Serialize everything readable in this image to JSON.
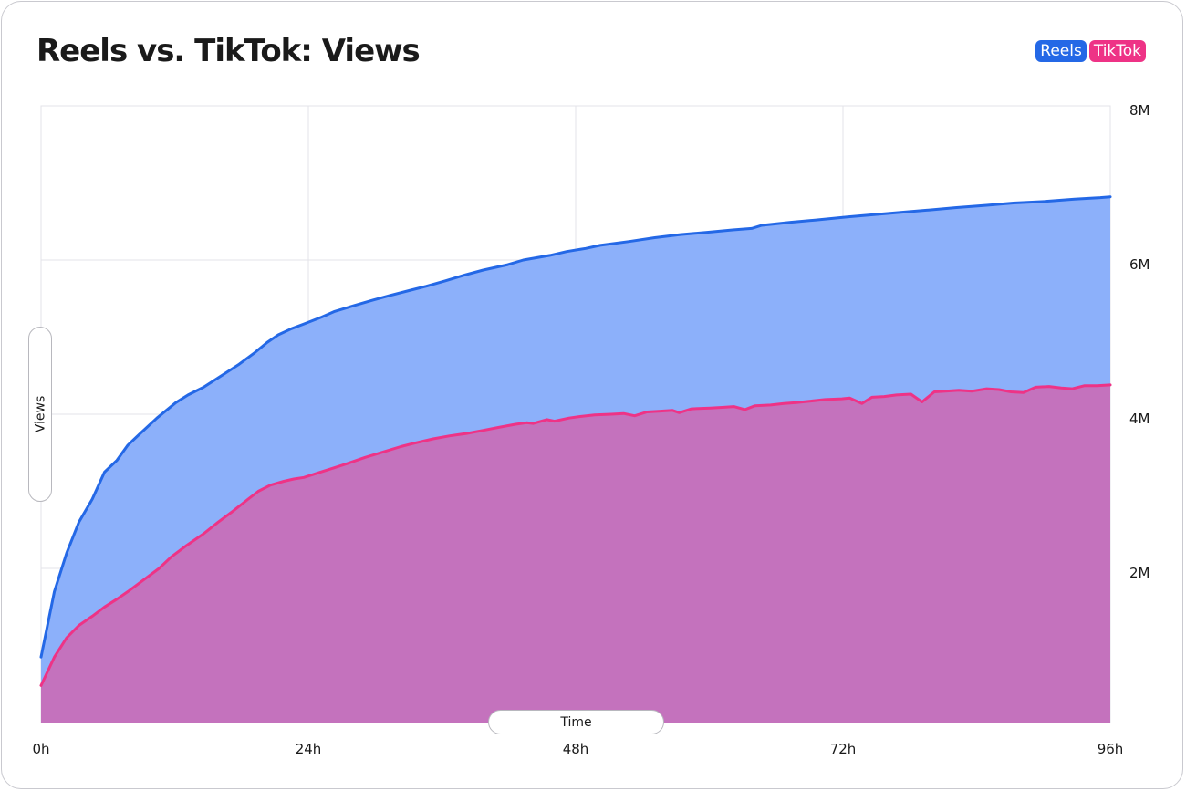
{
  "chart_data": {
    "type": "area",
    "title": "Reels vs. TikTok: Views",
    "xlabel": "Time",
    "ylabel": "Views",
    "x_unit": "hours",
    "xlim": [
      0,
      96
    ],
    "ylim": [
      0,
      8000000
    ],
    "x_ticks": [
      {
        "value": 0,
        "label": "0h"
      },
      {
        "value": 24,
        "label": "24h"
      },
      {
        "value": 48,
        "label": "48h"
      },
      {
        "value": 72,
        "label": "72h"
      },
      {
        "value": 96,
        "label": "96h"
      }
    ],
    "y_ticks": [
      {
        "value": 2000000,
        "label": "2M"
      },
      {
        "value": 4000000,
        "label": "4M"
      },
      {
        "value": 6000000,
        "label": "6M"
      },
      {
        "value": 8000000,
        "label": "8M"
      }
    ],
    "y_axis_side": "right",
    "grid": true,
    "legend_position": "top-right",
    "series": [
      {
        "name": "Reels",
        "color": "#2468e6",
        "fill": "#8cb0fa",
        "points": [
          [
            0,
            850000
          ],
          [
            1.2,
            1700000
          ],
          [
            2.3,
            2200000
          ],
          [
            3.4,
            2600000
          ],
          [
            4.6,
            2900000
          ],
          [
            5.7,
            3250000
          ],
          [
            6.8,
            3400000
          ],
          [
            7.8,
            3600000
          ],
          [
            8.9,
            3750000
          ],
          [
            10.4,
            3950000
          ],
          [
            12.1,
            4150000
          ],
          [
            13.2,
            4250000
          ],
          [
            14.6,
            4350000
          ],
          [
            16.2,
            4500000
          ],
          [
            17.8,
            4650000
          ],
          [
            19.2,
            4800000
          ],
          [
            20.3,
            4930000
          ],
          [
            21.3,
            5030000
          ],
          [
            22.5,
            5110000
          ],
          [
            23.6,
            5170000
          ],
          [
            25.2,
            5260000
          ],
          [
            26.3,
            5330000
          ],
          [
            28.1,
            5410000
          ],
          [
            29.8,
            5480000
          ],
          [
            31.3,
            5540000
          ],
          [
            33.2,
            5610000
          ],
          [
            34.6,
            5660000
          ],
          [
            36.3,
            5730000
          ],
          [
            37.9,
            5800000
          ],
          [
            39.7,
            5870000
          ],
          [
            41.9,
            5940000
          ],
          [
            43.3,
            6000000
          ],
          [
            45.7,
            6060000
          ],
          [
            47.2,
            6110000
          ],
          [
            48.9,
            6150000
          ],
          [
            50.2,
            6190000
          ],
          [
            52.8,
            6240000
          ],
          [
            55.1,
            6290000
          ],
          [
            57.4,
            6330000
          ],
          [
            59.8,
            6360000
          ],
          [
            62.1,
            6390000
          ],
          [
            63.8,
            6410000
          ],
          [
            64.7,
            6450000
          ],
          [
            67.3,
            6490000
          ],
          [
            69.6,
            6520000
          ],
          [
            72.4,
            6560000
          ],
          [
            74.9,
            6590000
          ],
          [
            77.3,
            6620000
          ],
          [
            79.8,
            6650000
          ],
          [
            82.2,
            6680000
          ],
          [
            84.9,
            6710000
          ],
          [
            87.3,
            6740000
          ],
          [
            90.1,
            6760000
          ],
          [
            92.8,
            6790000
          ],
          [
            95.1,
            6810000
          ],
          [
            96,
            6820000
          ]
        ]
      },
      {
        "name": "TikTok",
        "color": "#ee3386",
        "fill": "#c472bd",
        "points": [
          [
            0,
            480000
          ],
          [
            1.2,
            850000
          ],
          [
            2.3,
            1100000
          ],
          [
            3.4,
            1260000
          ],
          [
            4.6,
            1380000
          ],
          [
            5.7,
            1500000
          ],
          [
            6.8,
            1600000
          ],
          [
            7.8,
            1700000
          ],
          [
            9.2,
            1850000
          ],
          [
            10.6,
            2000000
          ],
          [
            11.7,
            2150000
          ],
          [
            13.1,
            2300000
          ],
          [
            14.6,
            2450000
          ],
          [
            15.9,
            2600000
          ],
          [
            17.3,
            2750000
          ],
          [
            18.6,
            2900000
          ],
          [
            19.5,
            3000000
          ],
          [
            20.6,
            3080000
          ],
          [
            21.8,
            3130000
          ],
          [
            22.7,
            3160000
          ],
          [
            23.6,
            3180000
          ],
          [
            24.9,
            3240000
          ],
          [
            26.2,
            3300000
          ],
          [
            27.5,
            3360000
          ],
          [
            29.1,
            3440000
          ],
          [
            30.7,
            3510000
          ],
          [
            32.3,
            3580000
          ],
          [
            33.4,
            3620000
          ],
          [
            35.2,
            3680000
          ],
          [
            36.7,
            3720000
          ],
          [
            38.2,
            3750000
          ],
          [
            39.7,
            3790000
          ],
          [
            41.1,
            3830000
          ],
          [
            42.6,
            3870000
          ],
          [
            43.6,
            3890000
          ],
          [
            44.2,
            3880000
          ],
          [
            45.4,
            3930000
          ],
          [
            46.1,
            3910000
          ],
          [
            47.4,
            3950000
          ],
          [
            48.4,
            3970000
          ],
          [
            49.7,
            3990000
          ],
          [
            51.2,
            4000000
          ],
          [
            52.3,
            4010000
          ],
          [
            53.3,
            3980000
          ],
          [
            54.4,
            4030000
          ],
          [
            55.6,
            4040000
          ],
          [
            56.7,
            4050000
          ],
          [
            57.3,
            4020000
          ],
          [
            58.4,
            4070000
          ],
          [
            60.1,
            4080000
          ],
          [
            61.3,
            4090000
          ],
          [
            62.2,
            4100000
          ],
          [
            63.2,
            4060000
          ],
          [
            64.1,
            4110000
          ],
          [
            65.5,
            4120000
          ],
          [
            66.7,
            4140000
          ],
          [
            67.8,
            4150000
          ],
          [
            69.1,
            4170000
          ],
          [
            70.4,
            4190000
          ],
          [
            71.9,
            4200000
          ],
          [
            72.6,
            4210000
          ],
          [
            73.7,
            4140000
          ],
          [
            74.6,
            4220000
          ],
          [
            75.7,
            4230000
          ],
          [
            76.8,
            4250000
          ],
          [
            78.1,
            4260000
          ],
          [
            79.1,
            4160000
          ],
          [
            80.2,
            4290000
          ],
          [
            81.2,
            4300000
          ],
          [
            82.4,
            4310000
          ],
          [
            83.6,
            4300000
          ],
          [
            84.9,
            4330000
          ],
          [
            86.0,
            4320000
          ],
          [
            87.1,
            4290000
          ],
          [
            88.2,
            4280000
          ],
          [
            89.3,
            4350000
          ],
          [
            90.5,
            4360000
          ],
          [
            91.6,
            4340000
          ],
          [
            92.6,
            4330000
          ],
          [
            93.7,
            4370000
          ],
          [
            94.8,
            4370000
          ],
          [
            96,
            4380000
          ]
        ]
      }
    ]
  }
}
